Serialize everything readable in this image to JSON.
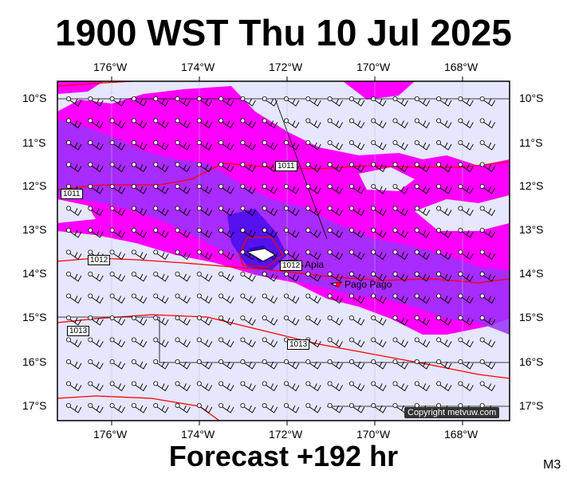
{
  "title": "1900 WST Thu 10 Jul 2025",
  "subtitle": "Forecast +192 hr",
  "model": "M3",
  "copyright": "Copyright metvuw.com",
  "axes": {
    "lon_labels": [
      "176°W",
      "174°W",
      "172°W",
      "170°W",
      "168°W"
    ],
    "lat_labels": [
      "10°S",
      "11°S",
      "12°S",
      "13°S",
      "14°S",
      "15°S",
      "16°S",
      "17°S"
    ]
  },
  "places": [
    {
      "name": "Apia",
      "lon": -171.76,
      "lat": -13.83
    },
    {
      "name": "Pago Pago",
      "lon": -170.7,
      "lat": -14.28
    }
  ],
  "isobar_labels": [
    "1011",
    "1011",
    "1012",
    "1013",
    "1013",
    "1012"
  ],
  "colors": {
    "background": "#e6e6ff",
    "rain_light": "#ff00ff",
    "rain_moderate": "#9933ff",
    "rain_heavy": "#5511ee",
    "isobar": "#ff0000"
  },
  "extent": {
    "lon_min": -177.3,
    "lon_max": -167.0,
    "lat_min": -17.3,
    "lat_max": -9.6
  }
}
